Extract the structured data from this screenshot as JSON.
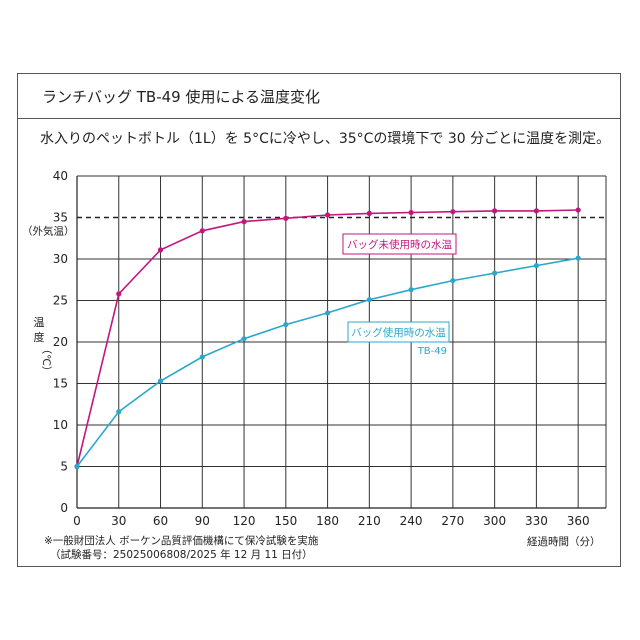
{
  "title": "ランチバッグ TB-49 使用による温度変化",
  "subtitle": "水入りのペットボトル（1L）を 5°Cに冷やし、35°Cの環境下で 30 分ごとに温度を測定。",
  "colors": {
    "magenta": "#c2187e",
    "cyan": "#2aa8cc",
    "grid": "#333333"
  },
  "chart_data": {
    "type": "line",
    "x": [
      0,
      30,
      60,
      90,
      120,
      150,
      180,
      210,
      240,
      270,
      300,
      330,
      360
    ],
    "xticks": [
      "0",
      "30",
      "60",
      "90",
      "120",
      "150",
      "180",
      "210",
      "240",
      "270",
      "300",
      "330",
      "360"
    ],
    "yticks": [
      "0",
      "5",
      "10",
      "15",
      "20",
      "25",
      "30",
      "35",
      "40"
    ],
    "xlim": [
      0,
      380
    ],
    "ylim": [
      0,
      40
    ],
    "xlabel": "経過時間（分）",
    "ylabel_top": "温",
    "ylabel_mid": "度",
    "ylabel_unit": "（℃）",
    "ambient_label": "（外気温）",
    "ambient": 35,
    "grid": true,
    "series": [
      {
        "name": "バッグ未使用時の水温",
        "color": "#c2187e",
        "values": [
          5,
          25.8,
          31.1,
          33.4,
          34.5,
          34.9,
          35.3,
          35.5,
          35.6,
          35.7,
          35.8,
          35.8,
          35.9
        ]
      },
      {
        "name": "バッグ使用時の水温",
        "sublabel": "TB-49",
        "color": "#2aa8cc",
        "values": [
          5,
          11.6,
          15.3,
          18.2,
          20.4,
          22.1,
          23.5,
          25.1,
          26.3,
          27.4,
          28.3,
          29.2,
          30.1
        ]
      }
    ]
  },
  "footnote": {
    "line1": "※一般財団法人 ボーケン品質評価機構にて保冷試験を実施",
    "line2": "（試験番号：25025006808/2025 年 12 月 11 日付）"
  }
}
